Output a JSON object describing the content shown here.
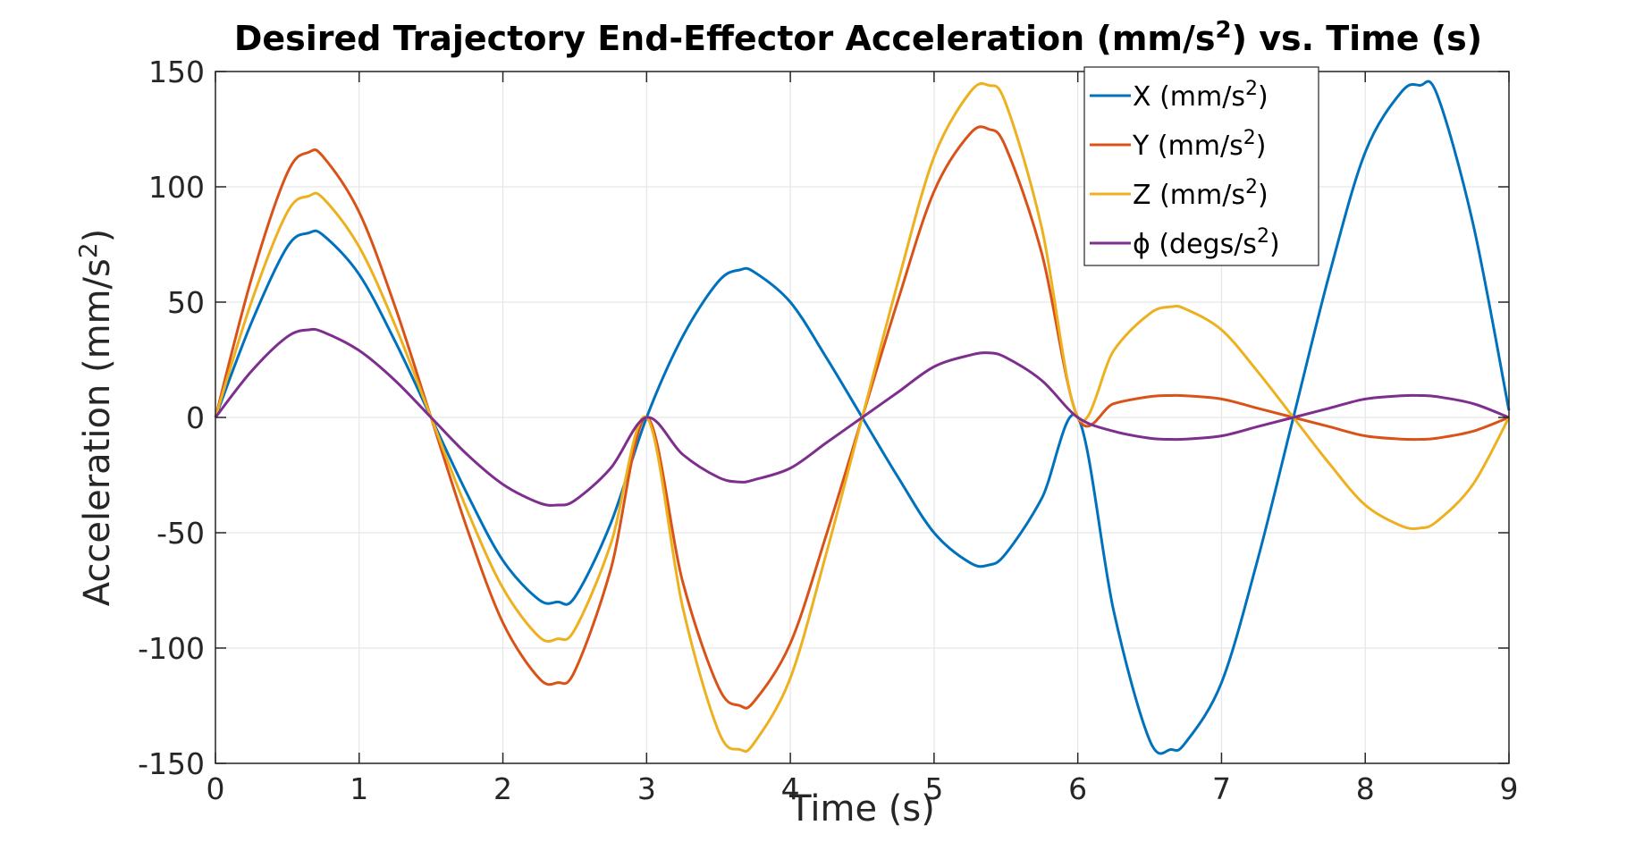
{
  "chart_data": {
    "type": "line",
    "title": "Desired Trajectory End-Effector Acceleration (mm/s",
    "title_sup": "2",
    "title_tail": ") vs. Time (s)",
    "xlabel": "Time (s)",
    "ylabel": "Acceleration (mm/s",
    "ylabel_sup": "2",
    "ylabel_tail": ")",
    "xlim": [
      0,
      9
    ],
    "ylim": [
      -150,
      150
    ],
    "xticks": [
      0,
      1,
      2,
      3,
      4,
      5,
      6,
      7,
      8,
      9
    ],
    "yticks": [
      -150,
      -100,
      -50,
      0,
      50,
      100,
      150
    ],
    "grid": true,
    "legend_position": "top-right",
    "series": [
      {
        "name": "X (mm/s",
        "name_sup": "2",
        "name_tail": ")",
        "color": "#0072BD",
        "x": [
          0,
          0.25,
          0.5,
          0.65,
          0.75,
          1.0,
          1.25,
          1.5,
          1.75,
          2.0,
          2.25,
          2.38,
          2.5,
          2.75,
          3.0,
          3.25,
          3.5,
          3.65,
          3.75,
          4.0,
          4.25,
          4.5,
          4.75,
          5.0,
          5.25,
          5.38,
          5.5,
          5.75,
          6.0,
          6.25,
          6.5,
          6.65,
          6.75,
          7.0,
          7.25,
          7.5,
          7.75,
          8.0,
          8.25,
          8.38,
          8.5,
          8.75,
          9.0
        ],
        "y": [
          0,
          41,
          74,
          80,
          79,
          62,
          33,
          0,
          -33,
          -62,
          -79,
          -80,
          -78,
          -46,
          0,
          35,
          59,
          64,
          63,
          50,
          26,
          0,
          -26,
          -50,
          -63,
          -64,
          -59,
          -35,
          0,
          -84,
          -140,
          -144,
          -141,
          -115,
          -62,
          0,
          62,
          115,
          141,
          144,
          140,
          84,
          3
        ]
      },
      {
        "name": "Y (mm/s",
        "name_sup": "2",
        "name_tail": ")",
        "color": "#D95319",
        "x": [
          0,
          0.25,
          0.5,
          0.65,
          0.75,
          1.0,
          1.25,
          1.5,
          1.75,
          2.0,
          2.25,
          2.38,
          2.5,
          2.75,
          3.0,
          3.25,
          3.5,
          3.65,
          3.75,
          4.0,
          4.25,
          4.5,
          4.75,
          5.0,
          5.25,
          5.38,
          5.5,
          5.75,
          6.0,
          6.25,
          6.5,
          6.65,
          6.75,
          7.0,
          7.25,
          7.5,
          7.75,
          8.0,
          8.25,
          8.38,
          8.5,
          8.75,
          9.0
        ],
        "y": [
          0,
          60,
          106,
          115,
          113,
          89,
          48,
          0,
          -48,
          -89,
          -113,
          -115,
          -110,
          -66,
          0,
          -71,
          -117,
          -125,
          -123,
          -98,
          -51,
          0,
          51,
          98,
          123,
          125,
          117,
          71,
          0,
          6,
          9,
          9.5,
          9.4,
          8,
          4,
          0,
          -4,
          -8,
          -9.4,
          -9.5,
          -9,
          -6,
          0
        ]
      },
      {
        "name": "Z (mm/s",
        "name_sup": "2",
        "name_tail": ")",
        "color": "#EDB120",
        "x": [
          0,
          0.25,
          0.5,
          0.65,
          0.75,
          1.0,
          1.25,
          1.5,
          1.75,
          2.0,
          2.25,
          2.38,
          2.5,
          2.75,
          3.0,
          3.25,
          3.5,
          3.65,
          3.75,
          4.0,
          4.25,
          4.5,
          4.75,
          5.0,
          5.25,
          5.38,
          5.5,
          5.75,
          6.0,
          6.25,
          6.5,
          6.65,
          6.75,
          7.0,
          7.25,
          7.5,
          7.75,
          8.0,
          8.25,
          8.38,
          8.5,
          8.75,
          9.0
        ],
        "y": [
          0,
          50,
          89,
          96,
          95,
          74,
          40,
          0,
          -40,
          -74,
          -95,
          -96,
          -92,
          -55,
          0,
          -82,
          -136,
          -144,
          -141,
          -113,
          -59,
          0,
          59,
          113,
          141,
          144,
          136,
          82,
          0,
          29,
          45,
          48,
          47,
          38,
          20,
          0,
          -20,
          -38,
          -47,
          -48,
          -45,
          -29,
          0
        ]
      },
      {
        "name": "ϕ (degs/s",
        "name_sup": "2",
        "name_tail": ")",
        "color": "#7E2F8E",
        "x": [
          0,
          0.25,
          0.5,
          0.65,
          0.75,
          1.0,
          1.25,
          1.5,
          1.75,
          2.0,
          2.25,
          2.38,
          2.5,
          2.75,
          3.0,
          3.25,
          3.5,
          3.65,
          3.75,
          4.0,
          4.25,
          4.5,
          4.75,
          5.0,
          5.25,
          5.38,
          5.5,
          5.75,
          6.0,
          6.25,
          6.5,
          6.65,
          6.75,
          7.0,
          7.25,
          7.5,
          7.75,
          8.0,
          8.25,
          8.38,
          8.5,
          8.75,
          9.0
        ],
        "y": [
          0,
          20,
          35,
          38,
          37,
          29,
          16,
          0,
          -16,
          -29,
          -37,
          -38,
          -36,
          -22,
          0,
          -16,
          -26,
          -28,
          -27,
          -22,
          -11,
          0,
          11,
          22,
          27,
          28,
          26,
          16,
          0,
          -6,
          -9,
          -9.5,
          -9.4,
          -8,
          -4,
          0,
          4,
          8,
          9.4,
          9.5,
          9,
          6,
          0
        ]
      }
    ]
  }
}
